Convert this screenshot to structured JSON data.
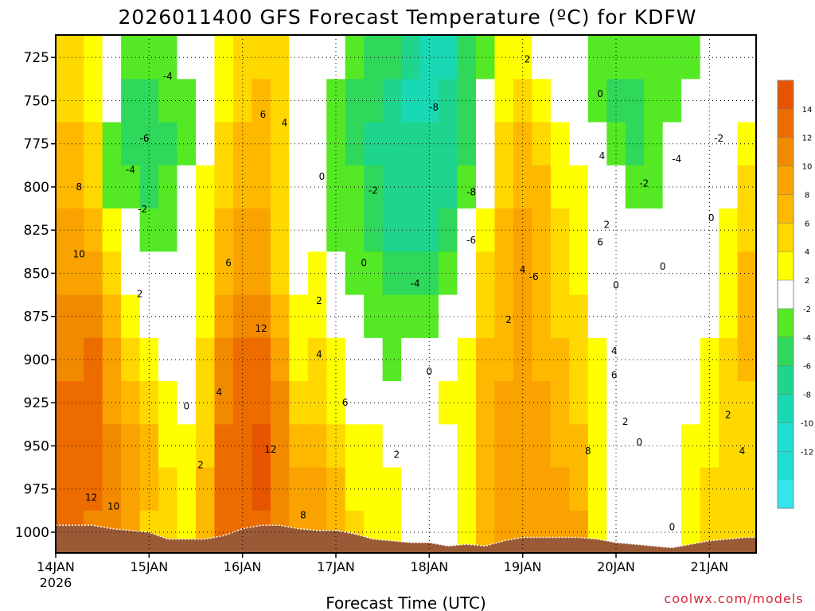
{
  "chart_data": {
    "type": "heatmap",
    "title": "2026011400 GFS Forecast Temperature (ºC) for KDFW",
    "xlabel": "Forecast Time (UTC)",
    "ylabel": "",
    "x_start_label": "14JAN",
    "x_year_label": "2026",
    "x_tick_labels": [
      "14JAN",
      "15JAN",
      "16JAN",
      "17JAN",
      "18JAN",
      "19JAN",
      "20JAN",
      "21JAN"
    ],
    "y_ticks": [
      725,
      750,
      775,
      800,
      825,
      850,
      875,
      900,
      925,
      950,
      975,
      1000
    ],
    "ylim": [
      1012,
      712
    ],
    "xlim": [
      0,
      7.5
    ],
    "colorbar": {
      "levels": [
        -14,
        -12,
        -10,
        -8,
        -6,
        -4,
        -2,
        2,
        4,
        6,
        8,
        10,
        12,
        14,
        16
      ],
      "labels": [
        "14",
        "12",
        "10",
        "8",
        "6",
        "4",
        "2",
        "-2",
        "-4",
        "-6",
        "-8",
        "-10",
        "-12"
      ],
      "colors": {
        "lt_-12": "#33e6ee",
        "-12_-10": "#1fdfd4",
        "-10_-8": "#19d9b4",
        "-8_-6": "#1fd48c",
        "-6_-4": "#2fd85a",
        "-4_-2": "#55e824",
        "-2_2": "#ffffff",
        "2_4": "#ffff00",
        "4_6": "#ffd800",
        "6_8": "#ffb800",
        "8_10": "#f9a200",
        "10_12": "#f28a00",
        "12_14": "#ec6c00",
        "14_16": "#e65400"
      }
    },
    "profiles": [
      {
        "day": 0.0,
        "sfc": 996,
        "t": [
          4,
          4,
          6,
          7,
          8,
          9,
          10,
          11,
          12,
          12,
          12,
          12
        ]
      },
      {
        "day": 0.2,
        "sfc": 996,
        "t": [
          4,
          5,
          6,
          7,
          8,
          9,
          10,
          11,
          12,
          12,
          12,
          12
        ]
      },
      {
        "day": 0.4,
        "sfc": 996,
        "t": [
          2,
          3,
          4,
          5,
          6,
          8,
          11,
          12,
          13,
          13,
          12,
          11
        ]
      },
      {
        "day": 0.6,
        "sfc": 998,
        "t": [
          0,
          -2,
          -4,
          -4,
          2,
          4,
          7,
          8,
          9,
          10,
          10,
          10
        ]
      },
      {
        "day": 0.8,
        "sfc": 999,
        "t": [
          -4,
          -5,
          -5,
          -4,
          -2,
          0,
          2,
          4,
          6,
          8,
          8,
          8
        ]
      },
      {
        "day": 1.0,
        "sfc": 1000,
        "t": [
          -4,
          -5,
          -6,
          -5,
          -3,
          -2,
          1,
          3,
          5,
          6,
          6,
          5
        ]
      },
      {
        "day": 1.2,
        "sfc": 1004,
        "t": [
          -4,
          -4,
          -5,
          -4,
          -3,
          -2,
          0,
          1,
          2,
          3,
          4,
          4
        ]
      },
      {
        "day": 1.4,
        "sfc": 1004,
        "t": [
          -2,
          -4,
          -4,
          -2,
          -1,
          0,
          0,
          0,
          1,
          2,
          3,
          3
        ]
      },
      {
        "day": 1.6,
        "sfc": 1004,
        "t": [
          0,
          0,
          1,
          2,
          3,
          3,
          3,
          4,
          4,
          5,
          6,
          6
        ]
      },
      {
        "day": 1.8,
        "sfc": 1002,
        "t": [
          2,
          3,
          4,
          5,
          6,
          7,
          9,
          10,
          11,
          12,
          12,
          12
        ]
      },
      {
        "day": 2.0,
        "sfc": 998,
        "t": [
          4,
          5,
          6,
          7,
          8,
          9,
          11,
          12,
          13,
          13,
          13,
          12
        ]
      },
      {
        "day": 2.2,
        "sfc": 996,
        "t": [
          5,
          6,
          6,
          6,
          8,
          9,
          11,
          12,
          13,
          14,
          14,
          13
        ]
      },
      {
        "day": 2.4,
        "sfc": 996,
        "t": [
          4,
          5,
          5,
          4,
          4,
          4,
          7,
          9,
          10,
          11,
          11,
          11
        ]
      },
      {
        "day": 2.6,
        "sfc": 998,
        "t": [
          1,
          1,
          1,
          0,
          1,
          1,
          2,
          3,
          4,
          6,
          8,
          9
        ]
      },
      {
        "day": 2.8,
        "sfc": 999,
        "t": [
          0,
          -1,
          -2,
          -1,
          0,
          2,
          3,
          4,
          5,
          7,
          8,
          9
        ]
      },
      {
        "day": 3.0,
        "sfc": 999,
        "t": [
          -2,
          -3,
          -4,
          -4,
          -3,
          -2,
          0,
          2,
          3,
          4,
          6,
          6
        ]
      },
      {
        "day": 3.2,
        "sfc": 1001,
        "t": [
          -3,
          -5,
          -6,
          -4,
          -3,
          -3,
          -1,
          0,
          1,
          2,
          3,
          4
        ]
      },
      {
        "day": 3.4,
        "sfc": 1004,
        "t": [
          -5,
          -6,
          -7,
          -6,
          -5,
          -4,
          -4,
          -2,
          0,
          2,
          3,
          3
        ]
      },
      {
        "day": 3.6,
        "sfc": 1005,
        "t": [
          -6,
          -8,
          -8,
          -8,
          -7,
          -6,
          -4,
          -3,
          -1,
          1,
          2,
          2
        ]
      },
      {
        "day": 3.8,
        "sfc": 1006,
        "t": [
          -8,
          -9,
          -8,
          -8,
          -7,
          -6,
          -3,
          -1,
          0,
          0,
          0,
          0
        ]
      },
      {
        "day": 4.0,
        "sfc": 1006,
        "t": [
          -10,
          -10,
          -8,
          -8,
          -7,
          -6,
          -4,
          -2,
          0,
          -1,
          -2,
          0
        ]
      },
      {
        "day": 4.2,
        "sfc": 1008,
        "t": [
          -9,
          -8,
          -7,
          -7,
          -6,
          -4,
          -2,
          0,
          2,
          0,
          -2,
          0
        ]
      },
      {
        "day": 4.4,
        "sfc": 1007,
        "t": [
          -6,
          -6,
          -5,
          -4,
          -2,
          0,
          1,
          2,
          3,
          3,
          2,
          2
        ]
      },
      {
        "day": 4.6,
        "sfc": 1008,
        "t": [
          -3,
          -1,
          0,
          1,
          2,
          4,
          5,
          6,
          6,
          7,
          7,
          7
        ]
      },
      {
        "day": 4.8,
        "sfc": 1005,
        "t": [
          2,
          3,
          4,
          5,
          6,
          6,
          7,
          7,
          8,
          8,
          8,
          8
        ]
      },
      {
        "day": 5.0,
        "sfc": 1003,
        "t": [
          2,
          4,
          6,
          7,
          8,
          8,
          8,
          8,
          8,
          8,
          8,
          8
        ]
      },
      {
        "day": 5.2,
        "sfc": 1003,
        "t": [
          1,
          3,
          5,
          6,
          7,
          7,
          7,
          7,
          8,
          8,
          8,
          9
        ]
      },
      {
        "day": 5.4,
        "sfc": 1003,
        "t": [
          0,
          1,
          2,
          3,
          4,
          5,
          5,
          6,
          7,
          7,
          8,
          8
        ]
      },
      {
        "day": 5.6,
        "sfc": 1003,
        "t": [
          -2,
          -1,
          0,
          2,
          3,
          3,
          4,
          4,
          5,
          6,
          7,
          8
        ]
      },
      {
        "day": 5.8,
        "sfc": 1004,
        "t": [
          -3,
          -4,
          -2,
          0,
          1,
          0,
          1,
          3,
          3,
          3,
          2,
          3
        ]
      },
      {
        "day": 6.0,
        "sfc": 1006,
        "t": [
          -4,
          -5,
          -4,
          -2,
          0,
          0,
          1,
          1,
          1,
          0,
          1,
          1
        ]
      },
      {
        "day": 6.2,
        "sfc": 1007,
        "t": [
          -4,
          -6,
          -5,
          -3,
          -1,
          0,
          0,
          1,
          1,
          0,
          1,
          1
        ]
      },
      {
        "day": 6.4,
        "sfc": 1008,
        "t": [
          -3,
          -4,
          -4,
          -3,
          -1,
          0,
          0,
          0,
          0,
          0,
          0,
          0
        ]
      },
      {
        "day": 6.6,
        "sfc": 1009,
        "t": [
          -4,
          -3,
          -2,
          -1,
          0,
          0,
          0,
          0,
          0,
          0,
          0,
          1
        ]
      },
      {
        "day": 6.8,
        "sfc": 1007,
        "t": [
          -3,
          -2,
          -1,
          0,
          0,
          0,
          0,
          1,
          1,
          2,
          3,
          3
        ]
      },
      {
        "day": 7.0,
        "sfc": 1005,
        "t": [
          -2,
          -1,
          0,
          0,
          0,
          1,
          1,
          2,
          2,
          3,
          4,
          4
        ]
      },
      {
        "day": 7.2,
        "sfc": 1004,
        "t": [
          -1,
          0,
          0,
          1,
          2,
          3,
          3,
          4,
          4,
          4,
          4,
          5
        ]
      },
      {
        "day": 7.4,
        "sfc": 1003,
        "t": [
          -1,
          0,
          2,
          4,
          5,
          6,
          6,
          6,
          5,
          5,
          5,
          5
        ]
      },
      {
        "day": 7.5,
        "sfc": 1003,
        "t": [
          0,
          1,
          3,
          4,
          5,
          6,
          6,
          6,
          5,
          5,
          5,
          5
        ]
      }
    ],
    "contour_labels": [
      {
        "text": "-4",
        "day": 1.2,
        "p": 736
      },
      {
        "text": "-6",
        "day": 0.95,
        "p": 772
      },
      {
        "text": "-4",
        "day": 0.8,
        "p": 790
      },
      {
        "text": "-2",
        "day": 0.93,
        "p": 813
      },
      {
        "text": "2",
        "day": 0.9,
        "p": 862
      },
      {
        "text": "8",
        "day": 0.25,
        "p": 800
      },
      {
        "text": "10",
        "day": 0.25,
        "p": 839
      },
      {
        "text": "12",
        "day": 0.38,
        "p": 980
      },
      {
        "text": "10",
        "day": 0.62,
        "p": 985
      },
      {
        "text": "0",
        "day": 1.4,
        "p": 927
      },
      {
        "text": "2",
        "day": 1.55,
        "p": 961
      },
      {
        "text": "4",
        "day": 1.75,
        "p": 919
      },
      {
        "text": "6",
        "day": 1.85,
        "p": 844
      },
      {
        "text": "6",
        "day": 2.22,
        "p": 758
      },
      {
        "text": "4",
        "day": 2.45,
        "p": 763
      },
      {
        "text": "12",
        "day": 2.2,
        "p": 882
      },
      {
        "text": "12",
        "day": 2.3,
        "p": 952
      },
      {
        "text": "8",
        "day": 2.65,
        "p": 990
      },
      {
        "text": "0",
        "day": 2.85,
        "p": 794
      },
      {
        "text": "0",
        "day": 3.3,
        "p": 844
      },
      {
        "text": "2",
        "day": 2.82,
        "p": 866
      },
      {
        "text": "4",
        "day": 2.82,
        "p": 897
      },
      {
        "text": "6",
        "day": 3.1,
        "p": 925
      },
      {
        "text": "2",
        "day": 3.65,
        "p": 955
      },
      {
        "text": "0",
        "day": 4.0,
        "p": 907
      },
      {
        "text": "-2",
        "day": 3.4,
        "p": 802
      },
      {
        "text": "-4",
        "day": 3.85,
        "p": 856
      },
      {
        "text": "-8",
        "day": 4.05,
        "p": 754
      },
      {
        "text": "-8",
        "day": 4.45,
        "p": 803
      },
      {
        "text": "-6",
        "day": 4.45,
        "p": 831
      },
      {
        "text": "2",
        "day": 5.05,
        "p": 726
      },
      {
        "text": "0",
        "day": 5.83,
        "p": 746
      },
      {
        "text": "4",
        "day": 5.85,
        "p": 782
      },
      {
        "text": "2",
        "day": 5.9,
        "p": 822
      },
      {
        "text": "6",
        "day": 5.83,
        "p": 832
      },
      {
        "text": "4",
        "day": 5.0,
        "p": 848
      },
      {
        "text": "-6",
        "day": 5.12,
        "p": 852
      },
      {
        "text": "2",
        "day": 4.85,
        "p": 877
      },
      {
        "text": "4",
        "day": 5.98,
        "p": 895
      },
      {
        "text": "6",
        "day": 5.98,
        "p": 909
      },
      {
        "text": "2",
        "day": 6.1,
        "p": 936
      },
      {
        "text": "8",
        "day": 5.7,
        "p": 953
      },
      {
        "text": "0",
        "day": 6.0,
        "p": 857
      },
      {
        "text": "0",
        "day": 6.25,
        "p": 948
      },
      {
        "text": "-2",
        "day": 6.3,
        "p": 798
      },
      {
        "text": "-4",
        "day": 6.65,
        "p": 784
      },
      {
        "text": "-2",
        "day": 7.1,
        "p": 772
      },
      {
        "text": "0",
        "day": 6.5,
        "p": 846
      },
      {
        "text": "0",
        "day": 7.02,
        "p": 818
      },
      {
        "text": "0",
        "day": 6.6,
        "p": 997
      },
      {
        "text": "2",
        "day": 7.2,
        "p": 932
      },
      {
        "text": "4",
        "day": 7.35,
        "p": 953
      }
    ],
    "credit": "coolwx.com/models"
  }
}
